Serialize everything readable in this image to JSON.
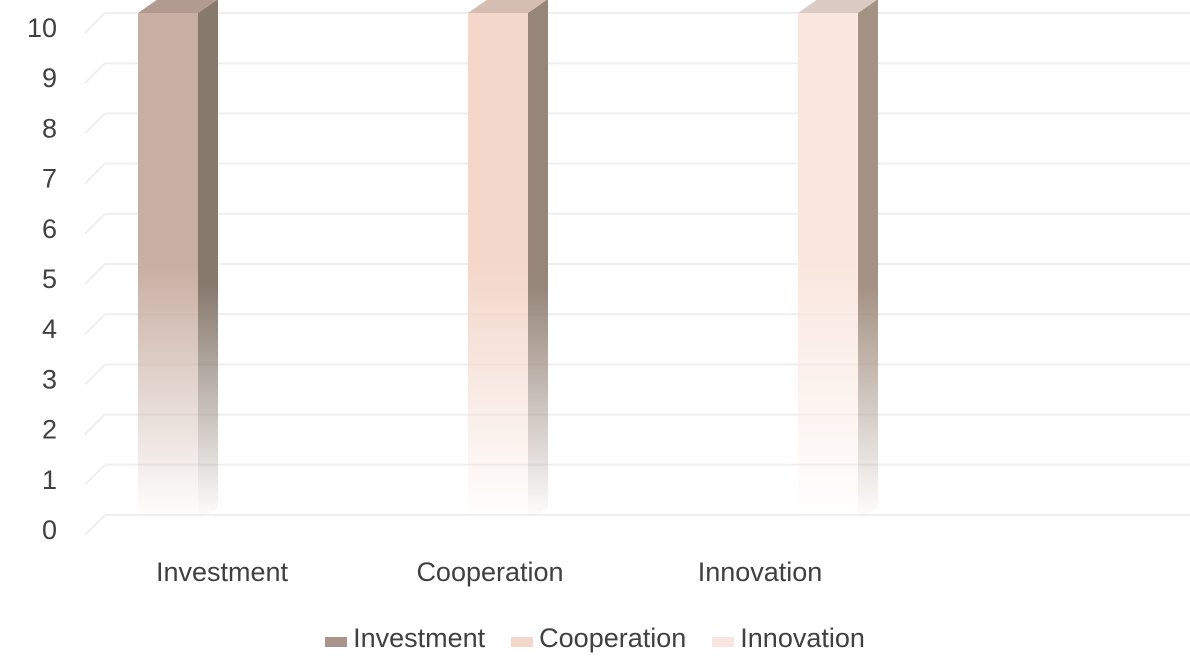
{
  "chart_data": {
    "type": "bar",
    "title": "",
    "xlabel": "",
    "ylabel": "",
    "categories": [
      "Investment",
      "Cooperation",
      "Innovation"
    ],
    "series": [
      {
        "name": "Investment",
        "values": [
          10,
          null,
          null
        ],
        "color": "#C9AFA3"
      },
      {
        "name": "Cooperation",
        "values": [
          null,
          10,
          null
        ],
        "color": "#F3D7CA"
      },
      {
        "name": "Innovation",
        "values": [
          null,
          null,
          10
        ],
        "color": "#F9E7DF"
      }
    ],
    "ylim": [
      0,
      10
    ],
    "yticks": [
      "0",
      "1",
      "2",
      "3",
      "4",
      "5",
      "6",
      "7",
      "8",
      "9",
      "10"
    ],
    "grid": true,
    "legend_position": "bottom",
    "style": "3d-column"
  }
}
